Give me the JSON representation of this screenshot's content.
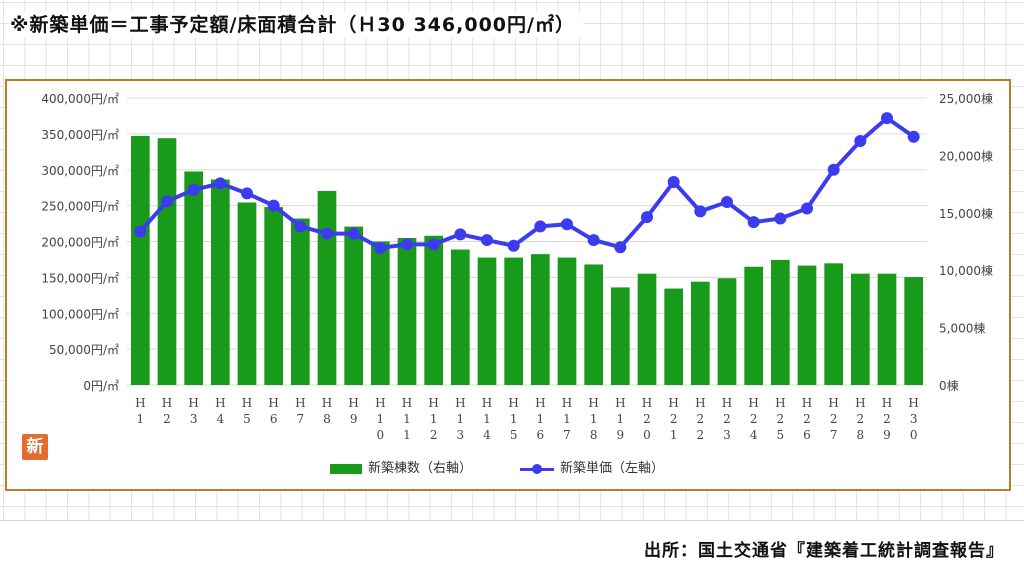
{
  "heading": "※新築単価＝工事予定額/床面積合計（Ｈ30 346,000円/㎡）",
  "source": "出所：国土交通省『建築着工統計調査報告』",
  "badge": "新",
  "chart_data": {
    "type": "bar",
    "categories": [
      "H1",
      "H2",
      "H3",
      "H4",
      "H5",
      "H6",
      "H7",
      "H8",
      "H9",
      "H10",
      "H11",
      "H12",
      "H13",
      "H14",
      "H15",
      "H16",
      "H17",
      "H18",
      "H19",
      "H20",
      "H21",
      "H22",
      "H23",
      "H24",
      "H25",
      "H26",
      "H27",
      "H28",
      "H29",
      "H30"
    ],
    "x_tick_labels": [
      [
        "H",
        "1"
      ],
      [
        "H",
        "2"
      ],
      [
        "H",
        "3"
      ],
      [
        "H",
        "4"
      ],
      [
        "H",
        "5"
      ],
      [
        "H",
        "6"
      ],
      [
        "H",
        "7"
      ],
      [
        "H",
        "8"
      ],
      [
        "H",
        "9"
      ],
      [
        "H",
        "1",
        "0"
      ],
      [
        "H",
        "1",
        "1"
      ],
      [
        "H",
        "1",
        "2"
      ],
      [
        "H",
        "1",
        "3"
      ],
      [
        "H",
        "1",
        "4"
      ],
      [
        "H",
        "1",
        "5"
      ],
      [
        "H",
        "1",
        "6"
      ],
      [
        "H",
        "1",
        "7"
      ],
      [
        "H",
        "1",
        "8"
      ],
      [
        "H",
        "1",
        "9"
      ],
      [
        "H",
        "2",
        "0"
      ],
      [
        "H",
        "2",
        "1"
      ],
      [
        "H",
        "2",
        "2"
      ],
      [
        "H",
        "2",
        "3"
      ],
      [
        "H",
        "2",
        "4"
      ],
      [
        "H",
        "2",
        "5"
      ],
      [
        "H",
        "2",
        "6"
      ],
      [
        "H",
        "2",
        "7"
      ],
      [
        "H",
        "2",
        "8"
      ],
      [
        "H",
        "2",
        "9"
      ],
      [
        "H",
        "3",
        "0"
      ]
    ],
    "series": [
      {
        "name": "新築棟数（右軸）",
        "type": "bar",
        "axis": "right",
        "color": "#1a9a1a",
        "values": [
          21700,
          21500,
          18600,
          17900,
          15900,
          15500,
          14500,
          16900,
          13800,
          12500,
          12800,
          13000,
          11800,
          11100,
          11100,
          11400,
          11100,
          10500,
          8500,
          9700,
          8400,
          9000,
          9300,
          10300,
          10900,
          10400,
          10600,
          9700,
          9700,
          9400
        ]
      },
      {
        "name": "新築単価（左軸）",
        "type": "line",
        "axis": "left",
        "color": "#3b3bf0",
        "values": [
          214000,
          256000,
          272000,
          281000,
          267000,
          250000,
          221000,
          211000,
          211000,
          191000,
          196000,
          196000,
          210000,
          202000,
          194000,
          221000,
          224000,
          202000,
          192000,
          234000,
          283000,
          242000,
          255000,
          227000,
          232000,
          246000,
          300000,
          340000,
          372000,
          346000
        ]
      }
    ],
    "left_axis": {
      "min": 0,
      "max": 400000,
      "step": 50000,
      "tick_labels": [
        "0円/㎡",
        "50,000円/㎡",
        "100,000円/㎡",
        "150,000円/㎡",
        "200,000円/㎡",
        "250,000円/㎡",
        "300,000円/㎡",
        "350,000円/㎡",
        "400,000円/㎡"
      ]
    },
    "right_axis": {
      "min": 0,
      "max": 25000,
      "step": 5000,
      "tick_labels": [
        "0棟",
        "5,000棟",
        "10,000棟",
        "15,000棟",
        "20,000棟",
        "25,000棟"
      ]
    },
    "grid": true,
    "legend_position": "bottom"
  }
}
